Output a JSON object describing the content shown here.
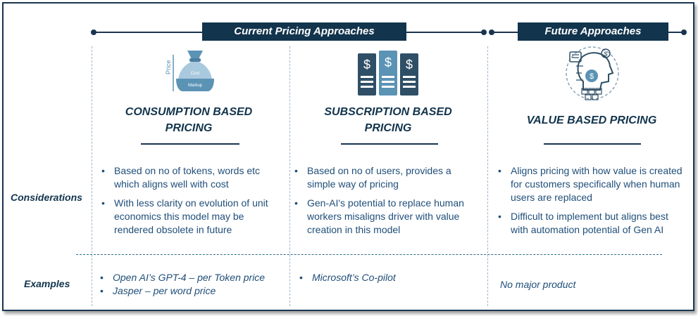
{
  "headers": {
    "current": "Current Pricing Approaches",
    "future": "Future Approaches"
  },
  "icons": {
    "consumption": {
      "name": "money-bag-icon",
      "axis_label": "Price",
      "top_label": "Cost",
      "bottom_label": "Markup"
    },
    "subscription": {
      "name": "dollar-servers-icon"
    },
    "value": {
      "name": "ai-head-value-icon"
    }
  },
  "columns": [
    {
      "title": "CONSUMPTION BASED\nPRICING",
      "considerations": [
        "Based on no of tokens, words etc which aligns well with cost",
        "With less clarity on evolution of unit economics this model may be rendered obsolete in future"
      ],
      "examples": [
        "Open AI’s GPT-4 – per Token price",
        "Jasper – per word price"
      ]
    },
    {
      "title": "SUBSCRIPTION BASED\nPRICING",
      "considerations": [
        "Based on no of users, provides a simple way of pricing",
        "Gen-AI's potential to replace human workers misaligns driver with value creation in this model"
      ],
      "examples": [
        "Microsoft’s Co-pilot"
      ]
    },
    {
      "title": "VALUE BASED PRICING",
      "considerations": [
        "Aligns pricing with how value is created for customers specifically when human users are replaced",
        "Difficult to implement but aligns best with automation potential of Gen AI"
      ],
      "no_examples": "No major product"
    }
  ],
  "rows": {
    "considerations": "Considerations",
    "examples": "Examples"
  },
  "colors": {
    "navy": "#12344d",
    "text": "#1f4e79",
    "icon_blue": "#5b93b5",
    "icon_dark": "#2f4f66"
  }
}
